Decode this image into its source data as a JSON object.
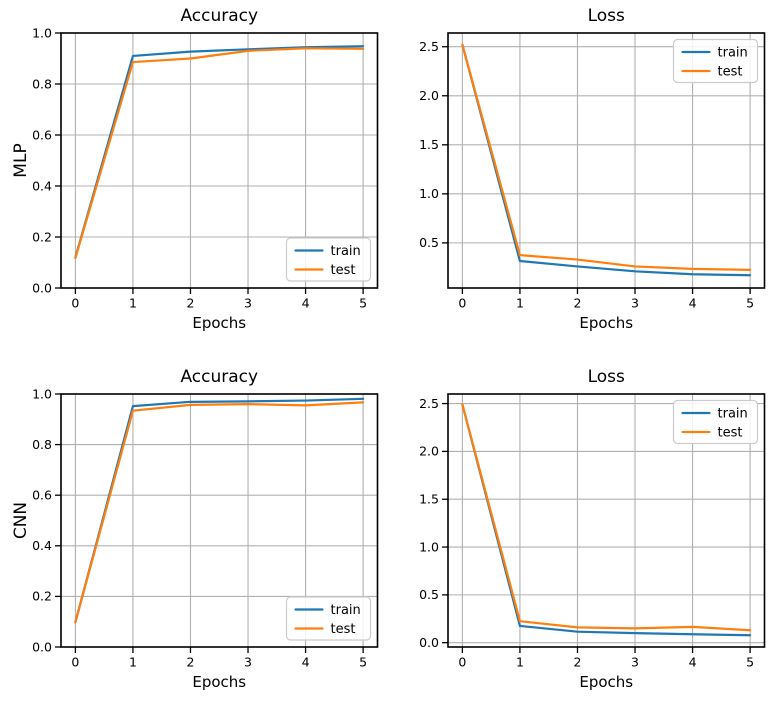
{
  "figure": {
    "background": "#ffffff",
    "text_color": "#000000",
    "grid_color": "#b0b0b0",
    "spine_color": "#000000",
    "legend_border_color": "#cccccc",
    "legend_bg": "#ffffff"
  },
  "chart_data": [
    {
      "id": "mlp-accuracy",
      "type": "line",
      "title": "Accuracy",
      "xlabel": "Epochs",
      "ylabel": "MLP",
      "x": [
        0,
        1,
        2,
        3,
        4,
        5
      ],
      "xticks": [
        0,
        1,
        2,
        3,
        4,
        5
      ],
      "xtick_labels": [
        "0",
        "1",
        "2",
        "3",
        "4",
        "5"
      ],
      "yticks": [
        0.0,
        0.2,
        0.4,
        0.6,
        0.8,
        1.0
      ],
      "ytick_labels": [
        "0.0",
        "0.2",
        "0.4",
        "0.6",
        "0.8",
        "1.0"
      ],
      "xlim": [
        -0.25,
        5.25
      ],
      "ylim": [
        0.0,
        1.0
      ],
      "grid": true,
      "legend_position": "lower-right",
      "series": [
        {
          "name": "train",
          "color": "#1f77b4",
          "values": [
            0.12,
            0.91,
            0.927,
            0.936,
            0.944,
            0.948
          ]
        },
        {
          "name": "test",
          "color": "#ff7f0e",
          "values": [
            0.118,
            0.886,
            0.9,
            0.93,
            0.94,
            0.938
          ]
        }
      ]
    },
    {
      "id": "mlp-loss",
      "type": "line",
      "title": "Loss",
      "xlabel": "Epochs",
      "ylabel": "",
      "x": [
        0,
        1,
        2,
        3,
        4,
        5
      ],
      "xticks": [
        0,
        1,
        2,
        3,
        4,
        5
      ],
      "xtick_labels": [
        "0",
        "1",
        "2",
        "3",
        "4",
        "5"
      ],
      "yticks": [
        0.5,
        1.0,
        1.5,
        2.0,
        2.5
      ],
      "ytick_labels": [
        "0.5",
        "1.0",
        "1.5",
        "2.0",
        "2.5"
      ],
      "xlim": [
        -0.25,
        5.25
      ],
      "ylim": [
        0.04,
        2.64
      ],
      "grid": true,
      "legend_position": "upper-right",
      "series": [
        {
          "name": "train",
          "color": "#1f77b4",
          "values": [
            2.52,
            0.315,
            0.26,
            0.21,
            0.18,
            0.17
          ]
        },
        {
          "name": "test",
          "color": "#ff7f0e",
          "values": [
            2.52,
            0.375,
            0.33,
            0.26,
            0.235,
            0.225
          ]
        }
      ]
    },
    {
      "id": "cnn-accuracy",
      "type": "line",
      "title": "Accuracy",
      "xlabel": "Epochs",
      "ylabel": "CNN",
      "x": [
        0,
        1,
        2,
        3,
        4,
        5
      ],
      "xticks": [
        0,
        1,
        2,
        3,
        4,
        5
      ],
      "xtick_labels": [
        "0",
        "1",
        "2",
        "3",
        "4",
        "5"
      ],
      "yticks": [
        0.0,
        0.2,
        0.4,
        0.6,
        0.8,
        1.0
      ],
      "ytick_labels": [
        "0.0",
        "0.2",
        "0.4",
        "0.6",
        "0.8",
        "1.0"
      ],
      "xlim": [
        -0.25,
        5.25
      ],
      "ylim": [
        0.0,
        1.0
      ],
      "grid": true,
      "legend_position": "lower-right",
      "series": [
        {
          "name": "train",
          "color": "#1f77b4",
          "values": [
            0.098,
            0.952,
            0.969,
            0.971,
            0.974,
            0.981
          ]
        },
        {
          "name": "test",
          "color": "#ff7f0e",
          "values": [
            0.098,
            0.934,
            0.957,
            0.96,
            0.955,
            0.967
          ]
        }
      ]
    },
    {
      "id": "cnn-loss",
      "type": "line",
      "title": "Loss",
      "xlabel": "Epochs",
      "ylabel": "",
      "x": [
        0,
        1,
        2,
        3,
        4,
        5
      ],
      "xticks": [
        0,
        1,
        2,
        3,
        4,
        5
      ],
      "xtick_labels": [
        "0",
        "1",
        "2",
        "3",
        "4",
        "5"
      ],
      "yticks": [
        0.0,
        0.5,
        1.0,
        1.5,
        2.0,
        2.5
      ],
      "ytick_labels": [
        "0.0",
        "0.5",
        "1.0",
        "1.5",
        "2.0",
        "2.5"
      ],
      "xlim": [
        -0.25,
        5.25
      ],
      "ylim": [
        -0.045,
        2.6
      ],
      "grid": true,
      "legend_position": "upper-right",
      "series": [
        {
          "name": "train",
          "color": "#1f77b4",
          "values": [
            2.49,
            0.175,
            0.115,
            0.1,
            0.088,
            0.078
          ]
        },
        {
          "name": "test",
          "color": "#ff7f0e",
          "values": [
            2.49,
            0.225,
            0.16,
            0.15,
            0.165,
            0.13
          ]
        }
      ]
    }
  ]
}
